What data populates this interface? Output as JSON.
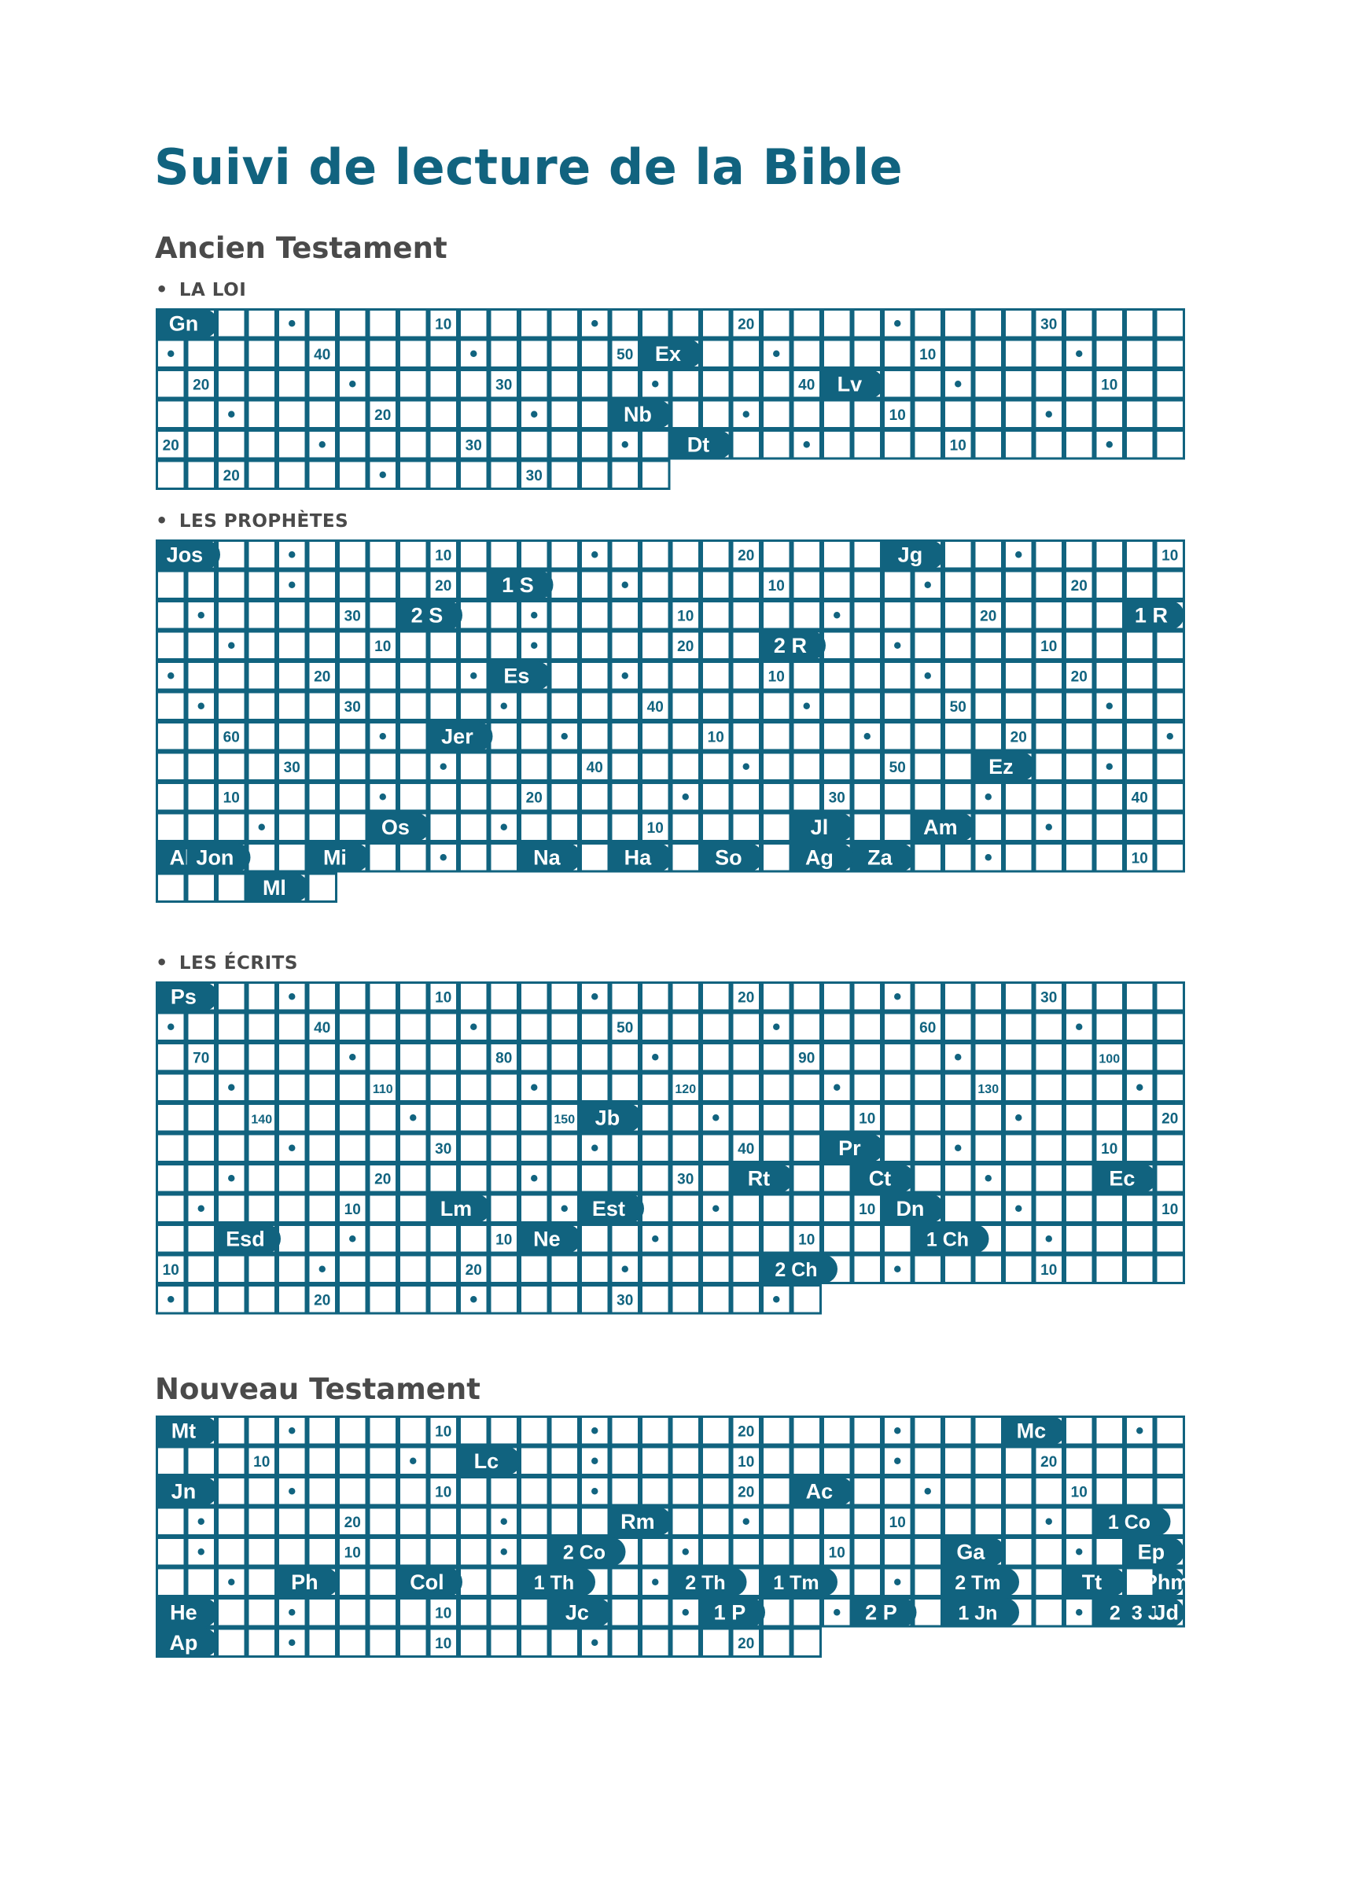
{
  "title": "Suivi de lecture de la Bible",
  "accent_color": "#11637f",
  "ot_heading": "Ancien Testament",
  "nt_heading": "Nouveau Testament",
  "bullet": "•",
  "grids": [
    {
      "id": "la-loi",
      "heading": "LA LOI",
      "books": [
        {
          "abbr": "Gn",
          "chapters": 50
        },
        {
          "abbr": "Ex",
          "chapters": 40
        },
        {
          "abbr": "Lv",
          "chapters": 27
        },
        {
          "abbr": "Nb",
          "chapters": 36
        },
        {
          "abbr": "Dt",
          "chapters": 34
        }
      ]
    },
    {
      "id": "les-prophetes",
      "heading": "LES PROPHÈTES",
      "books": [
        {
          "abbr": "Jos",
          "chapters": 24
        },
        {
          "abbr": "Jg",
          "chapters": 21
        },
        {
          "abbr": "1 S",
          "chapters": 31
        },
        {
          "abbr": "2 S",
          "chapters": 24
        },
        {
          "abbr": "1 R",
          "chapters": 22
        },
        {
          "abbr": "2 R",
          "chapters": 25
        },
        {
          "abbr": "Es",
          "chapters": 66
        },
        {
          "abbr": "Jer",
          "chapters": 52
        },
        {
          "abbr": "Ez",
          "chapters": 48
        },
        {
          "abbr": "Os",
          "chapters": 14
        },
        {
          "abbr": "Jl",
          "chapters": 4
        },
        {
          "abbr": "Am",
          "chapters": 9
        },
        {
          "abbr": "Ab",
          "chapters": 1
        },
        {
          "abbr": "Jon",
          "chapters": 4
        },
        {
          "abbr": "Mi",
          "chapters": 7
        },
        {
          "abbr": "Na",
          "chapters": 3
        },
        {
          "abbr": "Ha",
          "chapters": 3
        },
        {
          "abbr": "So",
          "chapters": 3
        },
        {
          "abbr": "Ag",
          "chapters": 2
        },
        {
          "abbr": "Za",
          "chapters": 14
        },
        {
          "abbr": "Ml",
          "chapters": 3
        }
      ]
    },
    {
      "id": "les-ecrits",
      "heading": "LES ÉCRITS",
      "books": [
        {
          "abbr": "Ps",
          "chapters": 150
        },
        {
          "abbr": "Jb",
          "chapters": 42
        },
        {
          "abbr": "Pr",
          "chapters": 31
        },
        {
          "abbr": "Rt",
          "chapters": 4
        },
        {
          "abbr": "Ct",
          "chapters": 8
        },
        {
          "abbr": "Ec",
          "chapters": 12
        },
        {
          "abbr": "Lm",
          "chapters": 5
        },
        {
          "abbr": "Est",
          "chapters": 10
        },
        {
          "abbr": "Dn",
          "chapters": 12
        },
        {
          "abbr": "Esd",
          "chapters": 10
        },
        {
          "abbr": "Ne",
          "chapters": 13
        },
        {
          "abbr": "1 Ch",
          "chapters": 29
        },
        {
          "abbr": "2 Ch",
          "chapters": 36
        }
      ]
    },
    {
      "id": "nouveau-testament",
      "heading": "",
      "books": [
        {
          "abbr": "Mt",
          "chapters": 28
        },
        {
          "abbr": "Mc",
          "chapters": 16
        },
        {
          "abbr": "Lc",
          "chapters": 24
        },
        {
          "abbr": "Jn",
          "chapters": 21
        },
        {
          "abbr": "Ac",
          "chapters": 28
        },
        {
          "abbr": "Rm",
          "chapters": 16
        },
        {
          "abbr": "1 Co",
          "chapters": 16
        },
        {
          "abbr": "2 Co",
          "chapters": 13
        },
        {
          "abbr": "Ga",
          "chapters": 6
        },
        {
          "abbr": "Ep",
          "chapters": 6
        },
        {
          "abbr": "Ph",
          "chapters": 4
        },
        {
          "abbr": "Col",
          "chapters": 4
        },
        {
          "abbr": "1 Th",
          "chapters": 5
        },
        {
          "abbr": "2 Th",
          "chapters": 3
        },
        {
          "abbr": "1 Tm",
          "chapters": 6
        },
        {
          "abbr": "2 Tm",
          "chapters": 4
        },
        {
          "abbr": "Tt",
          "chapters": 3
        },
        {
          "abbr": "Phm",
          "chapters": 1
        },
        {
          "abbr": "He",
          "chapters": 13
        },
        {
          "abbr": "Jc",
          "chapters": 5
        },
        {
          "abbr": "1 P",
          "chapters": 5
        },
        {
          "abbr": "2 P",
          "chapters": 3
        },
        {
          "abbr": "1 Jn",
          "chapters": 5
        },
        {
          "abbr": "2 Jn",
          "chapters": 1
        },
        {
          "abbr": "3 Jn",
          "chapters": 1
        },
        {
          "abbr": "Jd",
          "chapters": 1
        },
        {
          "abbr": "Ap",
          "chapters": 22
        }
      ]
    }
  ]
}
